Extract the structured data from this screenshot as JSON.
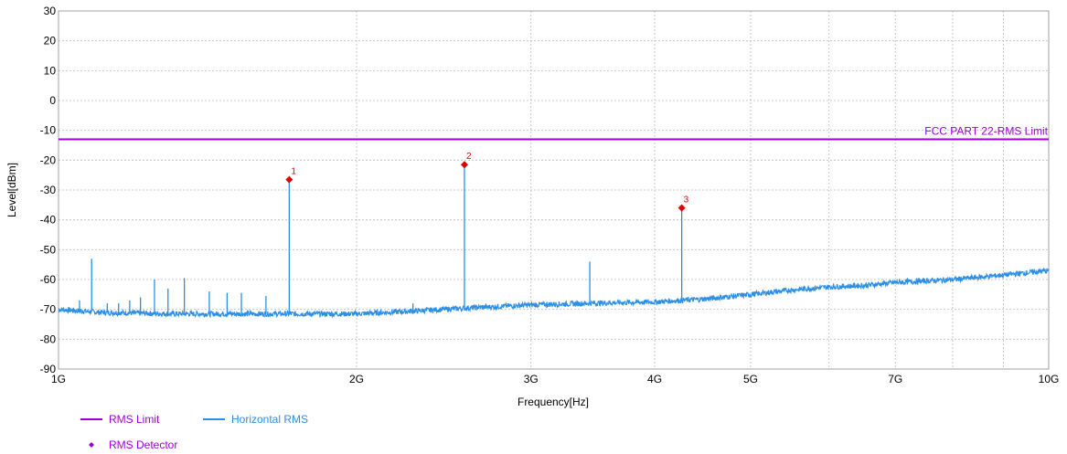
{
  "chart_data": {
    "type": "line",
    "x_scale": "log",
    "xlabel": "Frequency[Hz]",
    "ylabel": "Level[dBm]",
    "xlim": [
      1000000000,
      10000000000
    ],
    "ylim": [
      -90,
      30
    ],
    "grid": true,
    "y_ticks": [
      30,
      20,
      10,
      0,
      -10,
      -20,
      -30,
      -40,
      -50,
      -60,
      -70,
      -80,
      -90
    ],
    "x_ticks": [
      {
        "value": 1000000000,
        "label": "1G"
      },
      {
        "value": 2000000000,
        "label": "2G"
      },
      {
        "value": 3000000000,
        "label": "3G"
      },
      {
        "value": 4000000000,
        "label": "4G"
      },
      {
        "value": 5000000000,
        "label": "5G"
      },
      {
        "value": 7000000000,
        "label": "7G"
      },
      {
        "value": 10000000000,
        "label": "10G"
      }
    ],
    "x_minor_grid": [
      6000000000,
      8000000000,
      9000000000
    ],
    "limit_line": {
      "label": "FCC PART 22-RMS Limit",
      "value": -13,
      "color": "#9b00d8"
    },
    "series": [
      {
        "name": "Horizontal RMS",
        "color": "#2b8fe8",
        "noise_floor": [
          [
            1000000000,
            -70
          ],
          [
            1100000000,
            -71
          ],
          [
            1300000000,
            -71.5
          ],
          [
            1600000000,
            -71.5
          ],
          [
            2000000000,
            -71.5
          ],
          [
            2300000000,
            -70.5
          ],
          [
            2600000000,
            -69.5
          ],
          [
            3000000000,
            -68.5
          ],
          [
            3400000000,
            -68
          ],
          [
            4000000000,
            -67.5
          ],
          [
            4500000000,
            -66.5
          ],
          [
            5000000000,
            -65
          ],
          [
            5500000000,
            -63.5
          ],
          [
            6000000000,
            -62.5
          ],
          [
            6500000000,
            -62
          ],
          [
            7000000000,
            -61
          ],
          [
            8000000000,
            -60
          ],
          [
            9000000000,
            -58.5
          ],
          [
            10000000000,
            -57
          ]
        ],
        "spikes": [
          [
            1050000000,
            -67
          ],
          [
            1080000000,
            -53
          ],
          [
            1120000000,
            -68
          ],
          [
            1150000000,
            -68
          ],
          [
            1180000000,
            -67
          ],
          [
            1210000000,
            -66
          ],
          [
            1250000000,
            -60
          ],
          [
            1290000000,
            -63
          ],
          [
            1340000000,
            -59.5
          ],
          [
            1420000000,
            -64
          ],
          [
            1480000000,
            -64.5
          ],
          [
            1530000000,
            -64.5
          ],
          [
            1620000000,
            -65.5
          ],
          [
            1710000000,
            -26.5
          ],
          [
            2570000000,
            -21.5
          ],
          [
            2280000000,
            -68
          ],
          [
            3440000000,
            -54
          ],
          [
            4260000000,
            -36
          ]
        ]
      }
    ],
    "markers": [
      {
        "label": "1",
        "x": 1710000000,
        "y": -26.5
      },
      {
        "label": "2",
        "x": 2570000000,
        "y": -21.5
      },
      {
        "label": "3",
        "x": 4260000000,
        "y": -36
      }
    ],
    "marker_color": "#e00000",
    "legend": [
      {
        "label": "RMS Limit",
        "kind": "line",
        "color": "#9b00d8"
      },
      {
        "label": "Horizontal RMS",
        "kind": "line",
        "color": "#2b8fe8"
      },
      {
        "label": "RMS Detector",
        "kind": "diamond",
        "color": "#9b00d8"
      }
    ],
    "legend_position": "bottom-left"
  }
}
